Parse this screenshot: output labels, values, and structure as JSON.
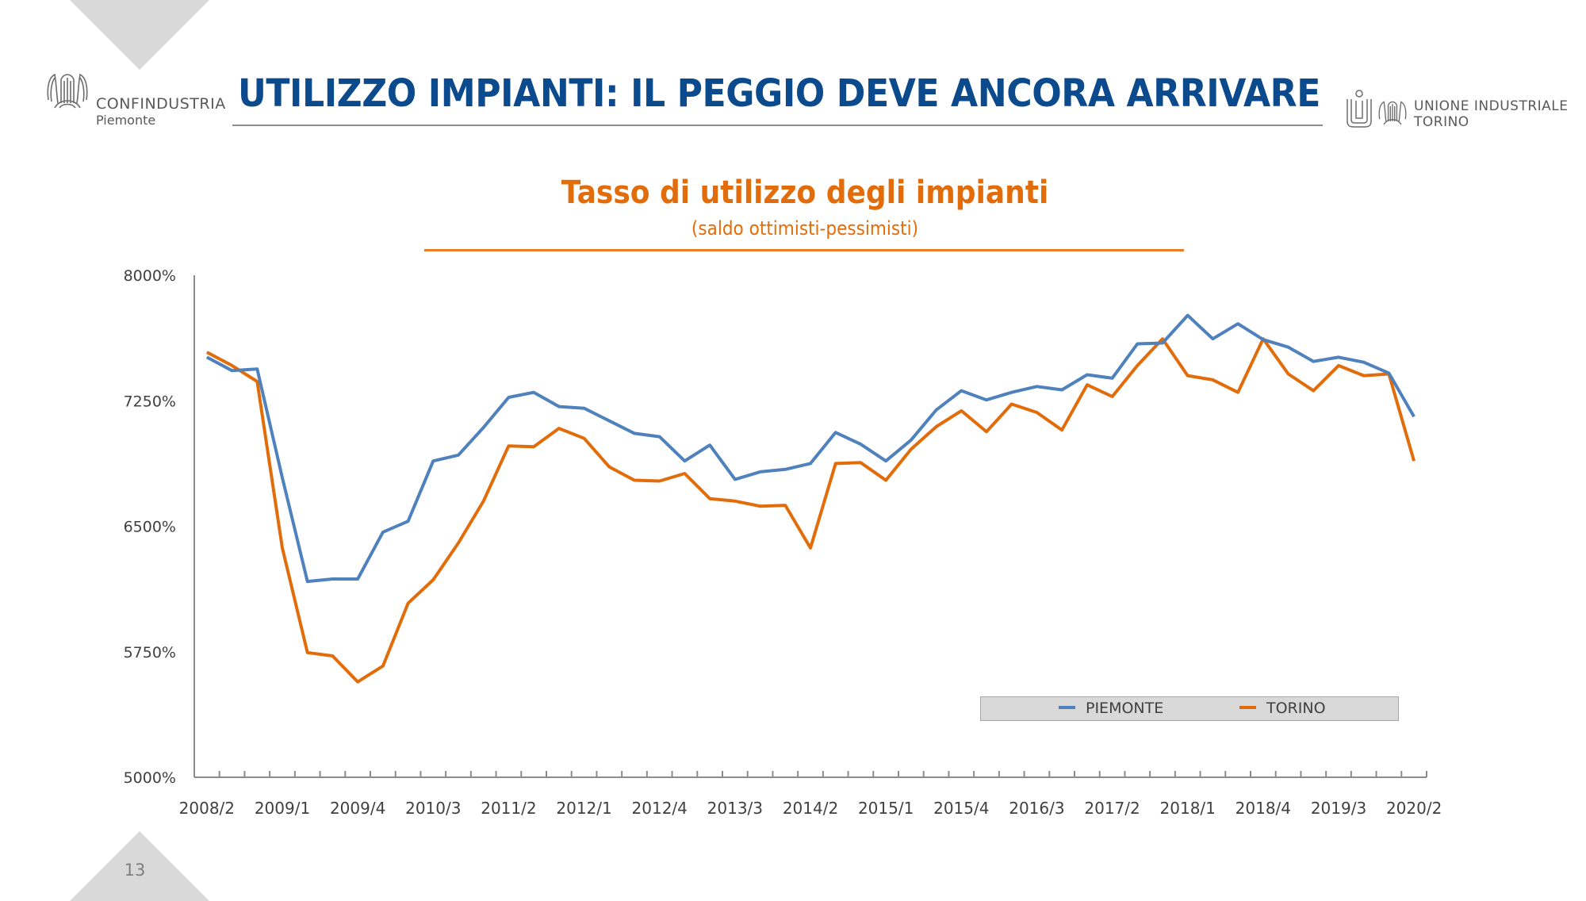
{
  "header": {
    "title": "UTILIZZO IMPIANTI: IL PEGGIO DEVE ANCORA ARRIVARE",
    "logo_left": {
      "name": "CONFINDUSTRIA",
      "sub": "Piemonte"
    },
    "logo_right": {
      "name": "UNIONE INDUSTRIALE",
      "sub": "TORINO"
    }
  },
  "footer": {
    "page_number": "13"
  },
  "colors": {
    "title": "#0b4a8c",
    "accent": "#e36c0a",
    "piemonte": "#4f81bd",
    "torino": "#e36c0a"
  },
  "chart_data": {
    "type": "line",
    "title": "Tasso di utilizzo degli impianti",
    "subtitle": "(saldo ottimisti-pessimisti)",
    "xlabel": "",
    "ylabel": "",
    "ylim": [
      5000,
      8000
    ],
    "yticks": [
      5000,
      5750,
      6500,
      7250,
      8000
    ],
    "ytick_labels": [
      "5000%",
      "5750%",
      "6500%",
      "7250%",
      "8000%"
    ],
    "grid": false,
    "legend_position": "bottom-right",
    "x": [
      "2008/2",
      "2008/3",
      "2008/4",
      "2009/1",
      "2009/2",
      "2009/3",
      "2009/4",
      "2010/1",
      "2010/2",
      "2010/3",
      "2010/4",
      "2011/1",
      "2011/2",
      "2011/3",
      "2011/4",
      "2012/1",
      "2012/2",
      "2012/3",
      "2012/4",
      "2013/1",
      "2013/2",
      "2013/3",
      "2013/4",
      "2014/1",
      "2014/2",
      "2014/3",
      "2014/4",
      "2015/1",
      "2015/2",
      "2015/3",
      "2015/4",
      "2016/1",
      "2016/2",
      "2016/3",
      "2016/4",
      "2017/1",
      "2017/2",
      "2017/3",
      "2017/4",
      "2018/1",
      "2018/2",
      "2018/3",
      "2018/4",
      "2019/1",
      "2019/2",
      "2019/3",
      "2019/4",
      "2020/1",
      "2020/2"
    ],
    "xtick_labels": [
      "2008/2",
      "2009/1",
      "2009/4",
      "2010/3",
      "2011/2",
      "2012/1",
      "2012/4",
      "2013/3",
      "2014/2",
      "2015/1",
      "2015/4",
      "2016/3",
      "2017/2",
      "2018/1",
      "2018/4",
      "2019/3",
      "2020/2"
    ],
    "series": [
      {
        "name": "PIEMONTE",
        "values": [
          7510,
          7430,
          7440,
          6790,
          6170,
          6185,
          6185,
          6465,
          6530,
          6890,
          6925,
          7090,
          7270,
          7300,
          7215,
          7205,
          7130,
          7055,
          7035,
          6890,
          6985,
          6780,
          6825,
          6840,
          6875,
          7060,
          6990,
          6890,
          7015,
          7195,
          7310,
          7255,
          7300,
          7335,
          7315,
          7405,
          7385,
          7590,
          7595,
          7760,
          7620,
          7710,
          7615,
          7570,
          7485,
          7510,
          7480,
          7415,
          7155
        ]
      },
      {
        "name": "TORINO",
        "values": [
          7540,
          7460,
          7365,
          6370,
          5745,
          5725,
          5570,
          5665,
          6040,
          6180,
          6400,
          6650,
          6980,
          6975,
          7085,
          7025,
          6855,
          6775,
          6770,
          6815,
          6665,
          6650,
          6620,
          6625,
          6370,
          6875,
          6880,
          6775,
          6960,
          7095,
          7190,
          7065,
          7230,
          7180,
          7075,
          7345,
          7275,
          7460,
          7620,
          7400,
          7375,
          7300,
          7620,
          7410,
          7310,
          7460,
          7400,
          7410,
          6890
        ]
      }
    ]
  }
}
